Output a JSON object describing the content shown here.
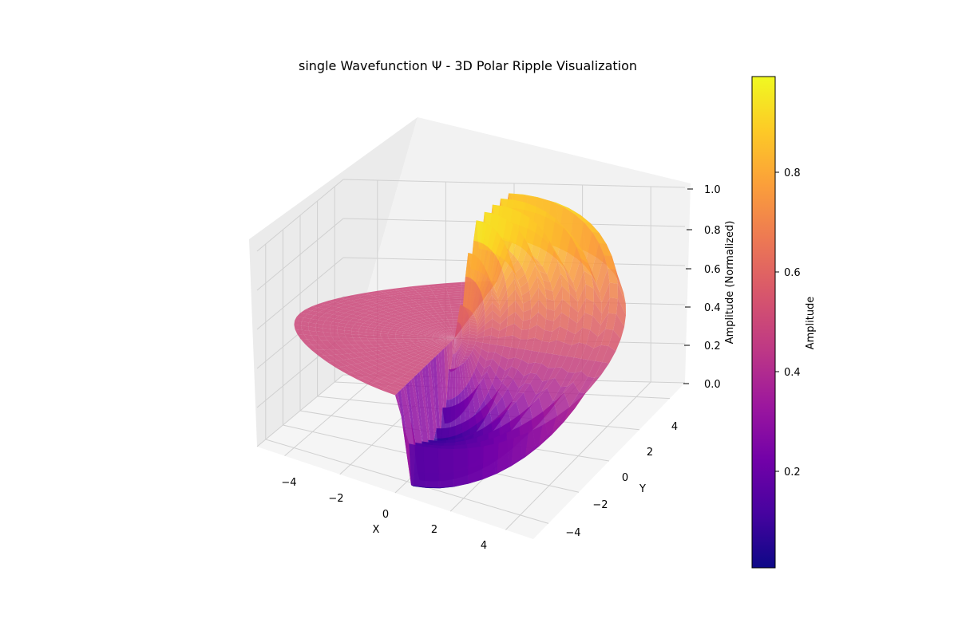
{
  "chart_data": {
    "type": "surface3d",
    "title": "single Wavefunction Ψ - 3D Polar Ripple Visualization",
    "xlabel": "X",
    "ylabel": "Y",
    "zlabel": "Amplitude (Normalized)",
    "colorbar_label": "Amplitude",
    "colormap": "plasma",
    "xlim": [
      -5,
      5
    ],
    "ylim": [
      -5,
      5
    ],
    "zlim": [
      0,
      1
    ],
    "x_ticks": [
      "−4",
      "−2",
      "0",
      "2",
      "4"
    ],
    "y_ticks": [
      "−4",
      "−2",
      "0",
      "2",
      "4"
    ],
    "z_ticks": [
      "0.0",
      "0.2",
      "0.4",
      "0.6",
      "0.8",
      "1.0"
    ],
    "colorbar_range": [
      0,
      1
    ],
    "colorbar_ticks": [
      "0.2",
      "0.4",
      "0.6",
      "0.8"
    ],
    "grid": true,
    "surface": "polar ripple; radius 0–5; amplitude rises to ~1.0 for x > 0, y > 0 and drops to ~0.0 for x > 0, y < 0; flat disc near 0.5 for x < 0"
  },
  "colors": {
    "plasma": [
      "#0d0887",
      "#46039f",
      "#7201a8",
      "#9c179e",
      "#bd3786",
      "#d8576b",
      "#ed7953",
      "#fb9f3a",
      "#fdca26",
      "#f0f921"
    ],
    "pane_left": "#ebebeb",
    "pane_back": "#f2f2f2",
    "pane_floor": "#f5f5f5",
    "grid": "#d0d0d0"
  }
}
